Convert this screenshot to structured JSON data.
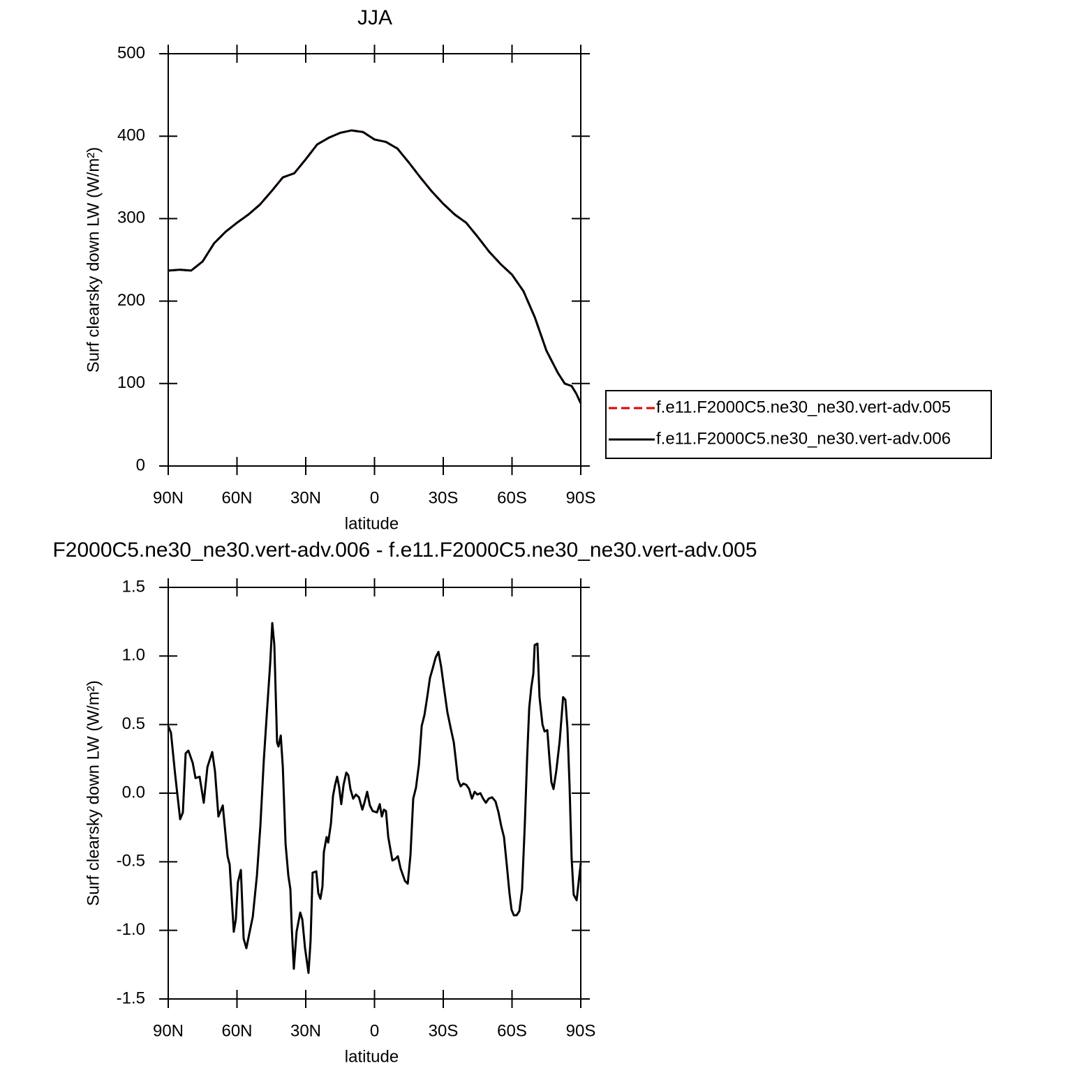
{
  "chart_data": [
    {
      "type": "line",
      "title": "JJA",
      "xlabel": "latitude",
      "ylabel": "Surf clearsky down LW (W/m²)",
      "x": [
        90,
        85,
        80,
        75,
        70,
        65,
        60,
        55,
        50,
        45,
        40,
        35,
        30,
        25,
        20,
        15,
        10,
        5,
        0,
        -5,
        -10,
        -15,
        -20,
        -25,
        -30,
        -35,
        -40,
        -45,
        -50,
        -55,
        -60,
        -65,
        -70,
        -75,
        -80,
        -83,
        -86,
        -88,
        -90
      ],
      "series": [
        {
          "name": "f.e11.F2000C5.ne30_ne30.vert-adv.005",
          "color": "#e00000",
          "style": "dashed",
          "values": [
            237,
            238,
            237,
            248,
            270,
            284,
            295,
            305,
            317,
            333,
            350,
            355,
            372,
            390,
            398,
            404,
            407,
            405,
            396,
            393,
            385,
            368,
            350,
            333,
            318,
            305,
            295,
            278,
            260,
            245,
            232,
            212,
            180,
            140,
            113,
            100,
            97,
            88,
            76
          ]
        },
        {
          "name": "f.e11.F2000C5.ne30_ne30.vert-adv.006",
          "color": "#000000",
          "style": "solid",
          "values": [
            237,
            238,
            237,
            248,
            270,
            284,
            295,
            305,
            317,
            333,
            350,
            355,
            372,
            390,
            398,
            404,
            407,
            405,
            396,
            393,
            385,
            368,
            350,
            333,
            318,
            305,
            295,
            278,
            260,
            245,
            232,
            212,
            180,
            140,
            113,
            100,
            97,
            88,
            76
          ]
        }
      ],
      "xlim": [
        90,
        -90
      ],
      "xticks": [
        {
          "value": 90,
          "label": "90N"
        },
        {
          "value": 60,
          "label": "60N"
        },
        {
          "value": 30,
          "label": "30N"
        },
        0,
        {
          "value": -30,
          "label": "30S"
        },
        {
          "value": -60,
          "label": "60S"
        },
        {
          "value": -90,
          "label": "90S"
        }
      ],
      "ylim": [
        0,
        500
      ],
      "yticks": [
        0,
        100,
        200,
        300,
        400,
        500
      ],
      "legend": "right"
    },
    {
      "type": "line",
      "title": "F2000C5.ne30_ne30.vert-adv.006 - f.e11.F2000C5.ne30_ne30.vert-adv.005",
      "xlabel": "latitude",
      "ylabel": "Surf clearsky down LW (W/m²)",
      "x": [
        90,
        88.8,
        87,
        84.8,
        83.6,
        82.4,
        81.2,
        79.3,
        78.1,
        76.3,
        74.5,
        72.9,
        70.8,
        69.6,
        68.1,
        66.2,
        64.1,
        63.2,
        61.4,
        60.5,
        59.6,
        58.3,
        57.1,
        55.9,
        54.7,
        53.1,
        51.3,
        49.8,
        48.3,
        46.7,
        45.5,
        44.6,
        43.7,
        42.5,
        41.9,
        40.9,
        40,
        38.8,
        37.6,
        36.7,
        36.1,
        35.2,
        34,
        32.4,
        31.5,
        30.3,
        28.8,
        27.9,
        27,
        25.4,
        24.5,
        23.6,
        22.7,
        22.1,
        20.9,
        20.2,
        19,
        18.1,
        17.2,
        16.3,
        15.4,
        14.5,
        13.5,
        12.3,
        11.4,
        10.5,
        9.3,
        8.1,
        6.8,
        5.3,
        4.4,
        3.2,
        2,
        0.8,
        -1.1,
        -2.3,
        -3.2,
        -4.1,
        -5,
        -6,
        -7.8,
        -9,
        -10.2,
        -11.4,
        -13.3,
        -14.5,
        -15.7,
        -16.9,
        -18.1,
        -19.4,
        -20.6,
        -21.8,
        -23,
        -24.2,
        -25.4,
        -26.7,
        -27.9,
        -29.1,
        -30.3,
        -31.8,
        -33.3,
        -34.6,
        -35.5,
        -36.4,
        -37.6,
        -38.8,
        -40.1,
        -41.3,
        -42.5,
        -43.7,
        -44.9,
        -46.2,
        -47.4,
        -48.6,
        -49.8,
        -51.3,
        -52.8,
        -54.1,
        -55.3,
        -56.5,
        -57.7,
        -58.9,
        -59.8,
        -60.8,
        -62,
        -63.2,
        -64.4,
        -65.6,
        -66.6,
        -67.5,
        -68.4,
        -69.3,
        -69.9,
        -71.1,
        -72,
        -73.3,
        -74.2,
        -75.4,
        -76.3,
        -77.2,
        -78.1,
        -79.3,
        -80.8,
        -82.3,
        -83.3,
        -84.2,
        -85.1,
        -86,
        -86.9,
        -88.2,
        -90
      ],
      "series": [
        {
          "color": "#000000",
          "style": "solid",
          "values": [
            0.49,
            0.44,
            0.14,
            -0.19,
            -0.14,
            0.29,
            0.31,
            0.22,
            0.11,
            0.12,
            -0.07,
            0.19,
            0.3,
            0.16,
            -0.17,
            -0.09,
            -0.46,
            -0.52,
            -1.01,
            -0.92,
            -0.65,
            -0.56,
            -1.06,
            -1.13,
            -1.03,
            -0.9,
            -0.6,
            -0.24,
            0.24,
            0.65,
            0.95,
            1.24,
            1.08,
            0.37,
            0.34,
            0.42,
            0.19,
            -0.37,
            -0.6,
            -0.7,
            -0.98,
            -1.28,
            -1.01,
            -0.87,
            -0.92,
            -1.13,
            -1.31,
            -1.08,
            -0.58,
            -0.57,
            -0.73,
            -0.77,
            -0.68,
            -0.43,
            -0.32,
            -0.36,
            -0.22,
            -0.02,
            0.06,
            0.12,
            0.04,
            -0.08,
            0.06,
            0.15,
            0.13,
            0.03,
            -0.04,
            -0.01,
            -0.03,
            -0.12,
            -0.07,
            0.01,
            -0.09,
            -0.13,
            -0.14,
            -0.08,
            -0.17,
            -0.12,
            -0.13,
            -0.32,
            -0.49,
            -0.48,
            -0.46,
            -0.55,
            -0.64,
            -0.66,
            -0.45,
            -0.04,
            0.04,
            0.21,
            0.49,
            0.57,
            0.7,
            0.84,
            0.91,
            0.99,
            1.03,
            0.92,
            0.77,
            0.59,
            0.47,
            0.37,
            0.24,
            0.1,
            0.05,
            0.07,
            0.06,
            0.03,
            -0.04,
            0.01,
            -0.01,
            0,
            -0.04,
            -0.07,
            -0.04,
            -0.03,
            -0.06,
            -0.14,
            -0.24,
            -0.32,
            -0.52,
            -0.73,
            -0.85,
            -0.89,
            -0.89,
            -0.86,
            -0.7,
            -0.22,
            0.26,
            0.62,
            0.77,
            0.87,
            1.08,
            1.09,
            0.7,
            0.5,
            0.45,
            0.46,
            0.26,
            0.08,
            0.03,
            0.16,
            0.38,
            0.7,
            0.68,
            0.47,
            0.06,
            -0.47,
            -0.74,
            -0.78,
            -0.51
          ]
        }
      ],
      "xlim": [
        90,
        -90
      ],
      "xticks": [
        {
          "value": 90,
          "label": "90N"
        },
        {
          "value": 60,
          "label": "60N"
        },
        {
          "value": 30,
          "label": "30N"
        },
        0,
        {
          "value": -30,
          "label": "30S"
        },
        {
          "value": -60,
          "label": "60S"
        },
        {
          "value": -90,
          "label": "90S"
        }
      ],
      "ylim": [
        -1.5,
        1.5
      ],
      "yticks": [
        -1.5,
        {
          "value": -1,
          "label": "-1.0"
        },
        -0.5,
        {
          "value": 0,
          "label": "0.0"
        },
        0.5,
        {
          "value": 1,
          "label": "1.0"
        },
        1.5
      ]
    }
  ]
}
